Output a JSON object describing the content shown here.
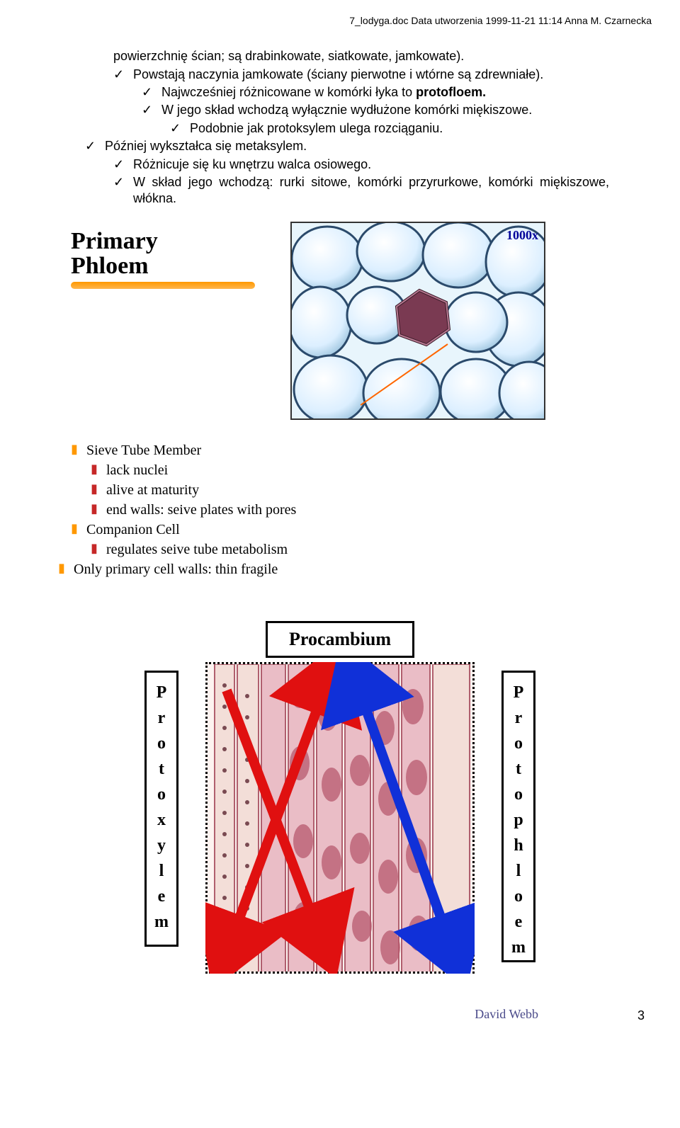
{
  "header": "7_lodyga.doc Data utworzenia 1999-11-21 11:14 Anna M. Czarnecka",
  "bullets": {
    "b1": "powierzchnię ścian; są drabinkowate, siatkowate, jamkowate).",
    "b2": "Powstają naczynia jamkowate (ściany pierwotne i wtórne są zdrewniałe).",
    "b3_pre": "Najwcześniej różnicowane w komórki łyka to ",
    "b3_bold": "protofloem.",
    "b4": "W jego skład wchodzą wyłącznie wydłużone komórki miękiszowe.",
    "b5": "Podobnie jak protoksylem ulega rozciąganiu.",
    "b6": "Później wykształca się metaksylem.",
    "b7": "Różnicuje się ku wnętrzu walca osiowego.",
    "b8": "W skład jego wchodzą: rurki sitowe, komórki przyrurkowe, komórki miękiszowe, włókna."
  },
  "fig1": {
    "title1": "Primary",
    "title2": "Phloem",
    "magnification": "1000x",
    "items": {
      "a": "Sieve Tube Member",
      "a1": "lack nuclei",
      "a2": "alive at maturity",
      "a3": "end walls: seive plates with pores",
      "b": "Companion Cell",
      "b1": "regulates seive tube metabolism",
      "c": "Only primary cell walls: thin fragile"
    },
    "colors": {
      "underline": "#ff9800",
      "bullet_top": "#ff9800",
      "bullet_sub": "#c62828",
      "border": "#333333",
      "mag_color": "#000099",
      "pointer": "#ff6600",
      "cell_bg": "#f2fbff",
      "cell_line": "#6fa8c9",
      "cell_shadow": "#2b4a6b",
      "center_fill": "#7a3a52",
      "center_line": "#3a1a28"
    }
  },
  "fig2": {
    "top_label": "Procambium",
    "left_label": "Protoxylem",
    "right_label": "Protophloem",
    "credit": "David Webb",
    "colors": {
      "border": "#000000",
      "red_arrow": "#e01010",
      "blue_arrow": "#1030d8",
      "micro_bg": "#fdf3f0",
      "tissue_pink": "#d98a9a",
      "tissue_dark": "#a85060",
      "tissue_light": "#f5e8e4",
      "credit_color": "#4a4a8a"
    }
  },
  "page_number": "3"
}
